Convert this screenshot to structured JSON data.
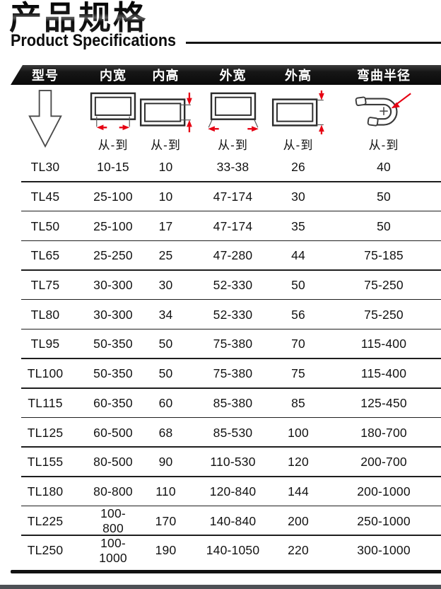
{
  "title": {
    "zh": "产品规格",
    "en": "Product Specifications"
  },
  "table": {
    "headers": [
      "型号",
      "内宽",
      "内高",
      "外宽",
      "外高",
      "弯曲半径"
    ],
    "range_label": "从-到",
    "icon_names": [
      "down-arrow-icon",
      "inner-width-icon",
      "inner-height-icon",
      "outer-width-icon",
      "outer-height-icon",
      "bend-radius-icon"
    ],
    "rows": [
      [
        "TL30",
        "10-15",
        "10",
        "33-38",
        "26",
        "40"
      ],
      [
        "TL45",
        "25-100",
        "10",
        "47-174",
        "30",
        "50"
      ],
      [
        "TL50",
        "25-100",
        "17",
        "47-174",
        "35",
        "50"
      ],
      [
        "TL65",
        "25-250",
        "25",
        "47-280",
        "44",
        "75-185"
      ],
      [
        "TL75",
        "30-300",
        "30",
        "52-330",
        "50",
        "75-250"
      ],
      [
        "TL80",
        "30-300",
        "34",
        "52-330",
        "56",
        "75-250"
      ],
      [
        "TL95",
        "50-350",
        "50",
        "75-380",
        "70",
        "115-400"
      ],
      [
        "TL100",
        "50-350",
        "50",
        "75-380",
        "75",
        "115-400"
      ],
      [
        "TL115",
        "60-350",
        "60",
        "85-380",
        "85",
        "125-450"
      ],
      [
        "TL125",
        "60-500",
        "68",
        "85-530",
        "100",
        "180-700"
      ],
      [
        "TL155",
        "80-500",
        "90",
        "110-530",
        "120",
        "200-700"
      ],
      [
        "TL180",
        "80-800",
        "110",
        "120-840",
        "144",
        "200-1000"
      ],
      [
        "TL225",
        "100-800",
        "170",
        "140-840",
        "200",
        "250-1000"
      ],
      [
        "TL250",
        "100-1000",
        "190",
        "140-1050",
        "220",
        "300-1000"
      ]
    ]
  },
  "colors": {
    "accent_red": "#e60012",
    "header_bg": "#141414",
    "separator": "#1e1e1e",
    "footer_bar": "#4e5156"
  }
}
